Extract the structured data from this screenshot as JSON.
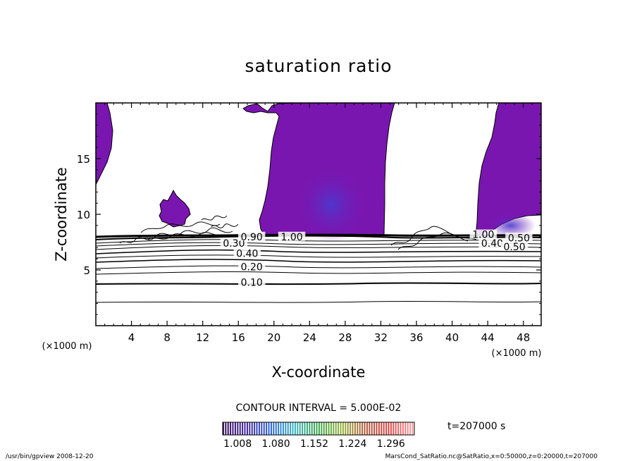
{
  "chart_data": {
    "type": "contour",
    "title": "saturation ratio",
    "xlabel": "X-coordinate",
    "ylabel": "Z-coordinate",
    "x_unit_label_left": "(×1000 m)",
    "x_unit_label_right": "(×1000 m)",
    "xlim": [
      0,
      50
    ],
    "ylim": [
      0,
      20
    ],
    "x_ticks": [
      4,
      8,
      12,
      16,
      20,
      24,
      28,
      32,
      36,
      40,
      44,
      48
    ],
    "y_ticks": [
      5,
      10,
      15
    ],
    "contour_interval_text": "CONTOUR INTERVAL = 5.000E-02",
    "contour_labels": [
      {
        "text": "0.10",
        "x": 17.5,
        "z": 3.7
      },
      {
        "text": "0.20",
        "x": 17.5,
        "z": 5.1
      },
      {
        "text": "0.40",
        "x": 17.0,
        "z": 6.3
      },
      {
        "text": "0.30",
        "x": 15.5,
        "z": 7.2
      },
      {
        "text": "0.90",
        "x": 17.5,
        "z": 7.8
      },
      {
        "text": "1.00",
        "x": 22.0,
        "z": 7.8
      },
      {
        "text": "1.00",
        "x": 43.5,
        "z": 8.0
      },
      {
        "text": "0.50",
        "x": 47.5,
        "z": 7.7
      },
      {
        "text": "0.40",
        "x": 44.5,
        "z": 7.2
      },
      {
        "text": "0.50",
        "x": 47.0,
        "z": 6.9
      }
    ],
    "shaded_regions": [
      {
        "name": "left column",
        "x_range": [
          0,
          2
        ],
        "z_range": [
          12.4,
          20
        ]
      },
      {
        "name": "central column",
        "x_range": [
          16.8,
          32.4
        ],
        "z_range": [
          8.1,
          20
        ]
      },
      {
        "name": "right column",
        "x_range": [
          42.5,
          50
        ],
        "z_range": [
          8.3,
          20
        ]
      },
      {
        "name": "small patch",
        "x_range": [
          7.0,
          10.8
        ],
        "z_range": [
          8.8,
          12.0
        ]
      }
    ],
    "colorbar": {
      "tick_labels": [
        "1.008",
        "1.080",
        "1.152",
        "1.224",
        "1.296"
      ],
      "colors": [
        "#2a0050",
        "#3a1aa0",
        "#2060d8",
        "#30b0c0",
        "#30a040",
        "#90b030",
        "#b05030",
        "#e03a3a",
        "#ff9a9a"
      ]
    },
    "time_label": "t=207000 s",
    "colors": {
      "shading": "#7a16b0",
      "shading_dark": "#5a2cc8",
      "line": "#000000"
    }
  },
  "footer": {
    "left": "/usr/bin/gpview   2008-12-20",
    "right": "MarsCond_SatRatio.nc@SatRatio,x=0:50000,z=0:20000,t=207000"
  }
}
